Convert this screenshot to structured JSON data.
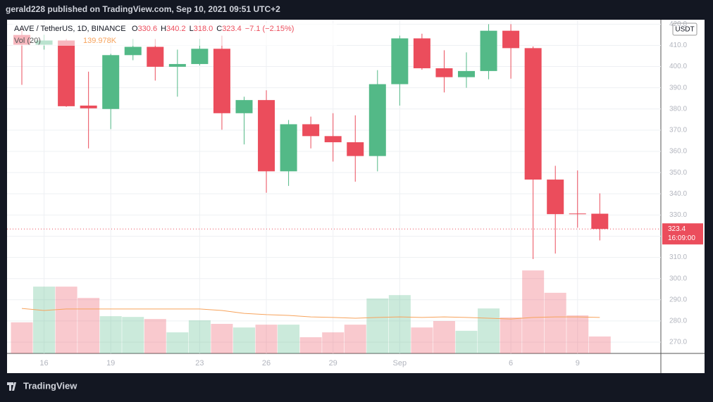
{
  "header": "gerald228 published on TradingView.com, Sep 10, 2021 09:51 UTC+2",
  "footer": "TradingView",
  "chart_data": {
    "type": "candlestick",
    "symbol": "AAVE / TetherUS, 1D, BINANCE",
    "ohlc_legend": [
      "O",
      "330.6",
      "H",
      "340.2",
      "L",
      "318.0",
      "C",
      "323.4",
      "−7.1 (−2.15%)"
    ],
    "volume_legend": [
      "Vol (20)",
      "139.978K"
    ],
    "currency": "USDT",
    "last_price_label": "323.4",
    "countdown": "16:09:00",
    "last_price": 323.4,
    "categories": [
      null,
      "16",
      null,
      null,
      "19",
      null,
      null,
      null,
      "23",
      null,
      null,
      "26",
      null,
      null,
      "29",
      null,
      null,
      "Sep",
      null,
      null,
      null,
      null,
      "6",
      null,
      null,
      "9",
      null
    ],
    "open": [
      414.9,
      410.3,
      412.3,
      381.6,
      380.0,
      405.4,
      409.3,
      399.9,
      401.2,
      408.4,
      378.0,
      384.2,
      350.6,
      372.8,
      367.2,
      364.3,
      357.8,
      391.7,
      413.3,
      399.2,
      395.0,
      397.9,
      416.9,
      408.7,
      346.7,
      330.7,
      330.6
    ],
    "high": [
      418.0,
      415.0,
      413.0,
      397.6,
      406.0,
      413.0,
      413.0,
      408.0,
      413.0,
      414.6,
      385.8,
      388.8,
      374.8,
      376.4,
      378.0,
      377.0,
      398.3,
      414.6,
      415.5,
      407.7,
      406.7,
      420.0,
      420.0,
      409.5,
      353.2,
      351.0,
      340.2
    ],
    "low": [
      391.4,
      408.0,
      381.0,
      361.4,
      370.5,
      403.0,
      393.4,
      385.8,
      400.5,
      370.2,
      363.3,
      340.5,
      343.7,
      361.4,
      355.2,
      345.7,
      350.6,
      381.6,
      398.5,
      387.8,
      390.0,
      394.0,
      394.3,
      309.2,
      311.8,
      324.0,
      318.0
    ],
    "close": [
      410.3,
      412.3,
      381.3,
      380.3,
      405.4,
      409.3,
      399.9,
      401.2,
      408.4,
      378.0,
      384.2,
      350.6,
      372.8,
      367.2,
      364.3,
      357.8,
      391.7,
      413.3,
      399.2,
      395.0,
      397.9,
      416.9,
      408.7,
      346.7,
      330.4,
      330.4,
      323.4
    ],
    "volume": [
      121,
      260,
      260,
      216,
      145,
      142,
      134,
      82,
      129,
      115,
      101,
      112,
      112,
      63,
      82,
      112,
      214,
      227,
      101,
      126,
      88,
      175,
      140,
      323,
      236,
      148,
      66
    ],
    "volume_ma": [
      175,
      167,
      173,
      173,
      173,
      173,
      173,
      173,
      173,
      167,
      156,
      151,
      148,
      142,
      140,
      137,
      140,
      142,
      140,
      142,
      140,
      137,
      134,
      140,
      142,
      142,
      140
    ],
    "up_color": "#53b987",
    "down_color": "#eb4d5c",
    "ma_color": "#f7a35c",
    "ylim": [
      264.7,
      422.1
    ],
    "yticks": [
      {
        "value": 270,
        "label": "270.0"
      },
      {
        "value": 280,
        "label": "280.0"
      },
      {
        "value": 290,
        "label": "290.0"
      },
      {
        "value": 300,
        "label": "300.0"
      },
      {
        "value": 310,
        "label": "310.0"
      },
      {
        "value": 320,
        "label": "320.0"
      },
      {
        "value": 330,
        "label": "330.0"
      },
      {
        "value": 340,
        "label": "340.0"
      },
      {
        "value": 350,
        "label": "350.0"
      },
      {
        "value": 360,
        "label": "360.0"
      },
      {
        "value": 370,
        "label": "370.0"
      },
      {
        "value": 380,
        "label": "380.0"
      },
      {
        "value": 390,
        "label": "390.0"
      },
      {
        "value": 400,
        "label": "400.0"
      },
      {
        "value": 410,
        "label": "410.0"
      },
      {
        "value": 420,
        "label": "420.0"
      }
    ],
    "grid": true
  }
}
